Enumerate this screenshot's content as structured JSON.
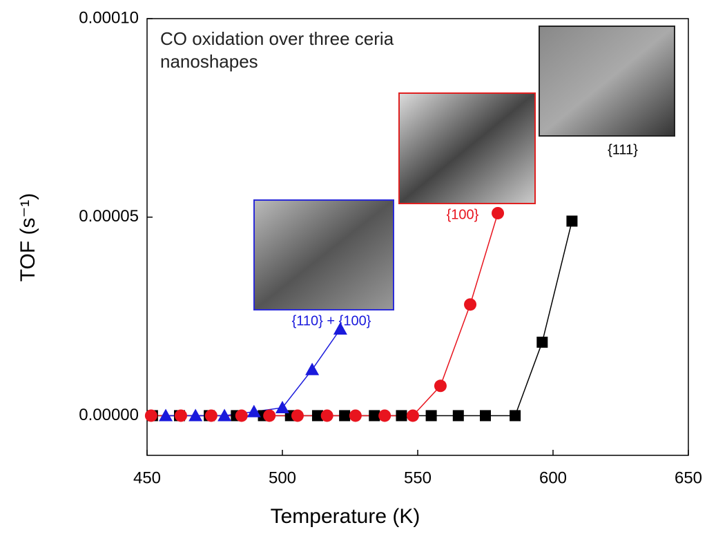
{
  "chart_data": {
    "type": "line",
    "title": "CO oxidation over three ceria nanoshapes",
    "xlabel": "Temperature (K)",
    "ylabel": "TOF (s⁻¹)",
    "xlim": [
      450,
      650
    ],
    "xticks": [
      450,
      500,
      550,
      600,
      650
    ],
    "ylim": [
      -1e-05,
      0.0001
    ],
    "yticks": [
      {
        "value": 0,
        "label": "0.00000"
      },
      {
        "value": 5e-05,
        "label": "0.00005"
      },
      {
        "value": 0.0001,
        "label": "0.00010"
      }
    ],
    "series": [
      {
        "name": "{111}",
        "color": "#000000",
        "marker": "square",
        "x": [
          452,
          462,
          473,
          483,
          493,
          503,
          513,
          523,
          534,
          544,
          555,
          565,
          575,
          586,
          596,
          607
        ],
        "values": [
          0,
          0,
          0,
          0,
          0,
          0,
          0,
          0,
          0,
          0,
          0,
          0,
          0,
          0,
          1.85e-05,
          4.9e-05
        ]
      },
      {
        "name": "{100}",
        "color": "#e8141e",
        "marker": "circle",
        "x": [
          451.5,
          462.5,
          473.7,
          484.9,
          495.2,
          505.6,
          516.5,
          527,
          537.8,
          548.2,
          558.4,
          569.4,
          579.6
        ],
        "values": [
          0,
          0,
          0,
          0,
          0,
          0,
          0,
          0,
          0,
          0,
          7.5e-06,
          2.8e-05,
          5.1e-05
        ]
      },
      {
        "name": "{110} + {100}",
        "color": "#1a1adc",
        "marker": "triangle",
        "x": [
          456.9,
          467.9,
          478.6,
          489.5,
          500,
          511,
          521.4
        ],
        "values": [
          0,
          0,
          0,
          1e-06,
          2e-06,
          1.16e-05,
          2.18e-05
        ]
      }
    ]
  }
}
